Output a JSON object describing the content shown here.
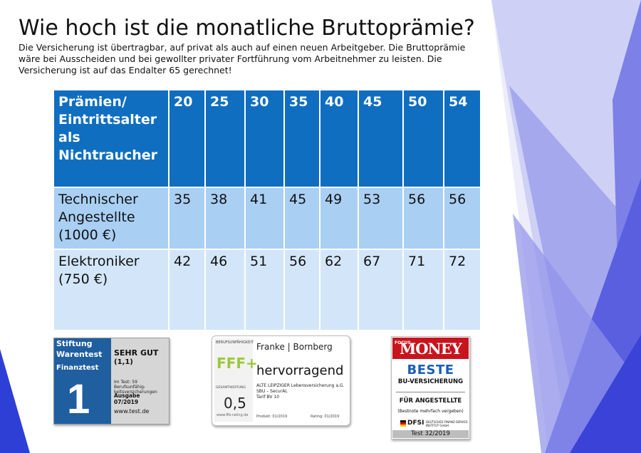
{
  "title": "Wie hoch ist die monatliche Bruttoprämie?",
  "subtitle": "Die Versicherung ist übertragbar, auf privat als auch auf einen neuen Arbeitgeber. Die Bruttoprämie wäre bei Ausscheiden und bei gewollter privater Fortführung vom Arbeitnehmer zu leisten. Die Versicherung ist auf das Endalter 65 gerechnet!",
  "colors": {
    "header": "#0f6ec0",
    "row1": "#a9cff3",
    "row2": "#d3e6f9",
    "deco_blue": "#2e3fd6"
  },
  "table": {
    "header_label": "Prämien/ Eintrittsalter als Nichtraucher",
    "ages": [
      "20",
      "25",
      "30",
      "35",
      "40",
      "45",
      "50",
      "54"
    ],
    "rows": [
      {
        "label": "Technischer Angestellte (1000 €)",
        "values": [
          "35",
          "38",
          "41",
          "45",
          "49",
          "53",
          "56",
          "56"
        ]
      },
      {
        "label": "Elektroniker (750 €)",
        "values": [
          "42",
          "46",
          "51",
          "56",
          "62",
          "67",
          "71",
          "72"
        ]
      }
    ]
  },
  "badges": {
    "stiftung": {
      "line1": "Stiftung",
      "line2": "Warentest",
      "line3": "Finanztest",
      "big": "1",
      "grade": "SEHR GUT",
      "score": "(1,1)",
      "note": "Im Test: 59 Berufsunfähig-keitsversicherungen",
      "issue_label": "Ausgabe",
      "issue": "07/2019",
      "url": "www.test.de"
    },
    "franke": {
      "category": "BERUFSUNFÄHIGKEIT",
      "rating": "FFF+",
      "total_label": "GESAMTWERTUNG",
      "total": "0,5",
      "url": "www.ffb-rating.de",
      "brand": "Franke | Bornberg",
      "verdict": "hervorragend",
      "insurer": "ALTE LEIPZIGER Lebensversicherung a.G.",
      "product": "SBU – SecurAL",
      "tariff": "Tarif BV 10",
      "product_date": "Produkt: 01/2019",
      "rating_date": "Rating: 01/2019"
    },
    "focus": {
      "focus": "FOCUS",
      "money": "MONEY",
      "beste": "BESTE",
      "bu": "BU-VERSICHERUNG",
      "fuer": "FÜR ANGESTELLTE",
      "mehrfach": "(Bestnote mehrfach vergeben)",
      "dfsi": "DFSI",
      "dfsi_sub": "DEUTSCHES FINANZ-SERVICE INSTITUT GmbH",
      "test": "Test 32/2019"
    }
  }
}
